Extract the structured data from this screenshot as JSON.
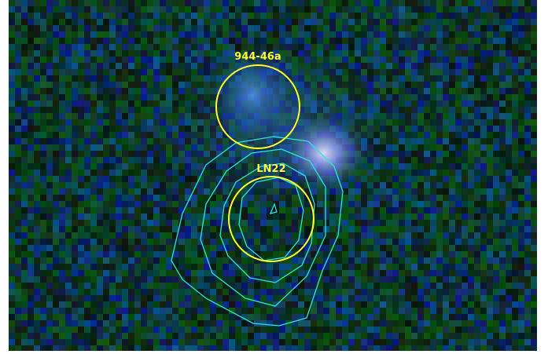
{
  "image": {
    "description_type": "astronomical false-colour composite with contours",
    "colors": {
      "background_green": "#0a3a16",
      "background_blue": "#0a1f5a",
      "contour": "#2fe6d6",
      "source_circle": "#ffff33",
      "label": "#ffff33",
      "diffuse_glow": "#aeb8ff"
    }
  },
  "sources": [
    {
      "label": "944-46a"
    },
    {
      "label": "LN22"
    }
  ]
}
